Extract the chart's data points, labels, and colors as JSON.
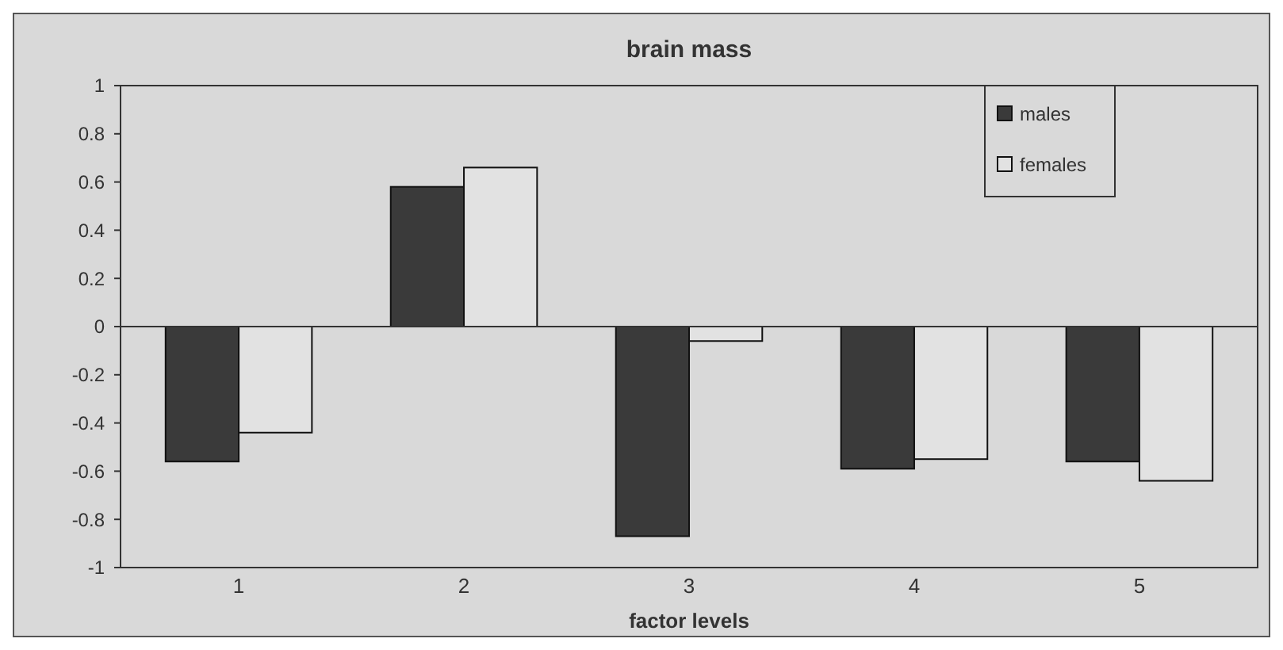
{
  "chart_data": {
    "type": "bar",
    "title": "brain mass",
    "xlabel": "factor levels",
    "categories": [
      "1",
      "2",
      "3",
      "4",
      "5"
    ],
    "series": [
      {
        "name": "males",
        "color": "#3a3a3a",
        "values": [
          -0.56,
          0.58,
          -0.87,
          -0.59,
          -0.56
        ]
      },
      {
        "name": "females",
        "color": "#e2e2e2",
        "values": [
          -0.44,
          0.66,
          -0.06,
          -0.55,
          -0.64
        ]
      }
    ],
    "ylim": [
      -1,
      1
    ],
    "yticks": [
      -1,
      -0.8,
      -0.6,
      -0.4,
      -0.2,
      0,
      0.2,
      0.4,
      0.6,
      0.8,
      1
    ],
    "legend": "top right"
  }
}
